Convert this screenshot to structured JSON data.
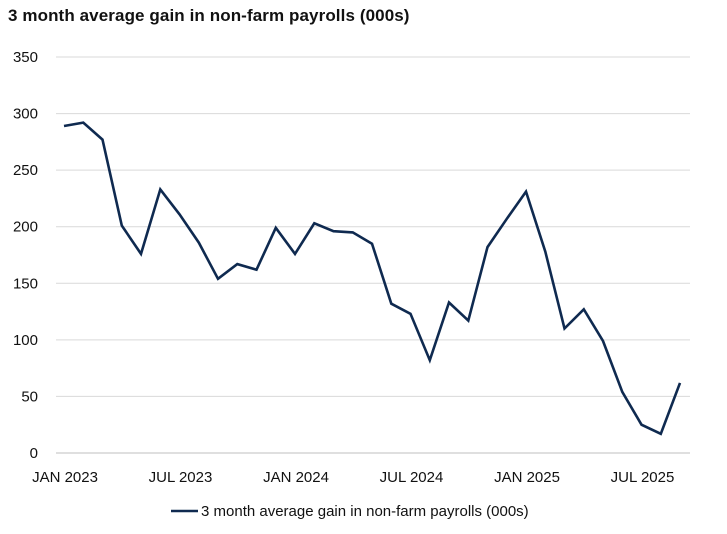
{
  "colors": {
    "series_line": "#0f2a50",
    "gridline": "#d9d9d9",
    "axis_line": "#bfbfbf"
  },
  "chart_data": {
    "type": "line",
    "title": "3 month average gain in non-farm payrolls (000s)",
    "xlabel": "",
    "ylabel": "",
    "ylim": [
      0,
      350
    ],
    "yticks": [
      0,
      50,
      100,
      150,
      200,
      250,
      300,
      350
    ],
    "grid": true,
    "legend_position": "bottom-center",
    "x_tick_labels": [
      {
        "index": 0,
        "label": "JAN 2023"
      },
      {
        "index": 6,
        "label": "JUL 2023"
      },
      {
        "index": 12,
        "label": "JAN 2024"
      },
      {
        "index": 18,
        "label": "JUL 2024"
      },
      {
        "index": 24,
        "label": "JAN 2025"
      },
      {
        "index": 30,
        "label": "JUL 2025"
      }
    ],
    "x": [
      "Jan 2023",
      "Feb 2023",
      "Mar 2023",
      "Apr 2023",
      "May 2023",
      "Jun 2023",
      "Jul 2023",
      "Aug 2023",
      "Sep 2023",
      "Oct 2023",
      "Nov 2023",
      "Dec 2023",
      "Jan 2024",
      "Feb 2024",
      "Mar 2024",
      "Apr 2024",
      "May 2024",
      "Jun 2024",
      "Jul 2024",
      "Aug 2024",
      "Sep 2024",
      "Oct 2024",
      "Nov 2024",
      "Dec 2024",
      "Jan 2025",
      "Feb 2025",
      "Mar 2025",
      "Apr 2025",
      "May 2025",
      "Jun 2025",
      "Jul 2025",
      "Aug 2025",
      "Sep 2025"
    ],
    "series": [
      {
        "name": "3 month average gain in non-farm payrolls (000s)",
        "values": [
          289,
          292,
          277,
          201,
          176,
          233,
          211,
          186,
          154,
          167,
          162,
          199,
          176,
          203,
          196,
          195,
          185,
          132,
          123,
          82,
          133,
          117,
          182,
          207,
          231,
          178,
          110,
          127,
          99,
          54,
          25,
          17,
          62
        ]
      }
    ]
  }
}
